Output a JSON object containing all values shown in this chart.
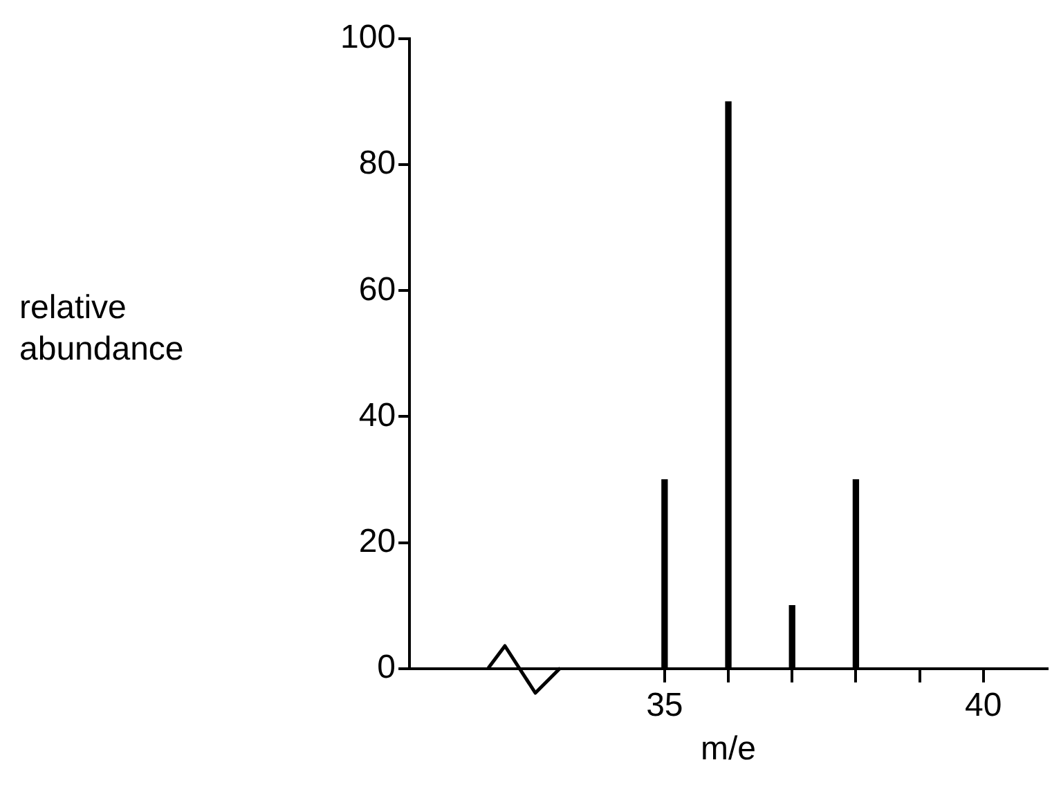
{
  "chart_data": {
    "type": "bar",
    "ylabel": "relative abundance",
    "xlabel": "m/e",
    "x": [
      35,
      36,
      37,
      38
    ],
    "values": [
      30,
      90,
      10,
      30
    ],
    "color": "#000000",
    "xlim": [
      31,
      41
    ],
    "xticks": [
      35,
      {
        "value": 36,
        "label": null
      },
      {
        "value": 37,
        "label": null
      },
      {
        "value": 38,
        "label": null
      },
      {
        "value": 39,
        "label": null
      },
      40
    ],
    "ylim": [
      0,
      100
    ],
    "yticks": [
      0,
      20,
      40,
      60,
      80,
      100
    ],
    "grid": false,
    "legend": false
  }
}
